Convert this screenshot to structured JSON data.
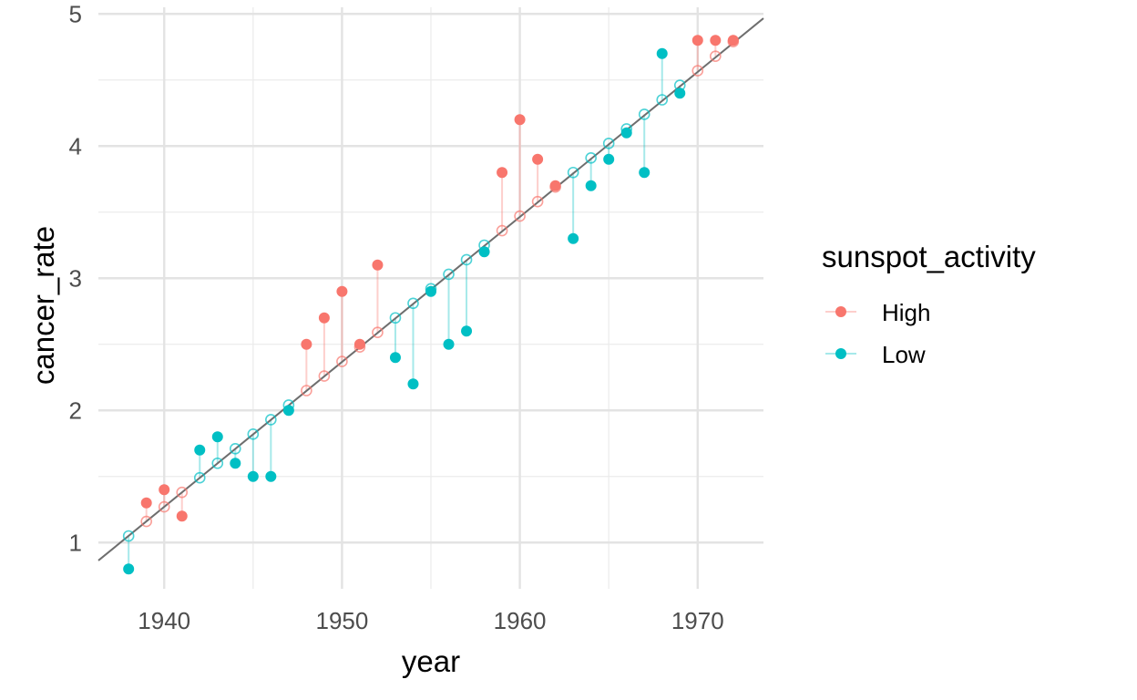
{
  "chart_data": {
    "type": "scatter",
    "xlabel": "year",
    "ylabel": "cancer_rate",
    "xlim": [
      1936.3,
      1973.7
    ],
    "ylim": [
      0.65,
      5.05
    ],
    "x_ticks": [
      1940,
      1950,
      1960,
      1970
    ],
    "y_ticks": [
      1,
      2,
      3,
      4,
      5
    ],
    "x_tick_labels": [
      "1940",
      "1950",
      "1960",
      "1970"
    ],
    "y_tick_labels": [
      "1",
      "2",
      "3",
      "4",
      "5"
    ],
    "grid": true,
    "legend": {
      "title": "sunspot_activity",
      "position": "right",
      "entries": [
        {
          "label": "High",
          "color": "#F8766D"
        },
        {
          "label": "Low",
          "color": "#00BFC4"
        }
      ]
    },
    "fit_line": {
      "intercept_year": 1940,
      "intercept_value": 1.27,
      "slope": 0.1097
    },
    "points": [
      {
        "year": 1938,
        "actual": 0.8,
        "fitted": 1.05,
        "group": "Low"
      },
      {
        "year": 1939,
        "actual": 1.3,
        "fitted": 1.16,
        "group": "High"
      },
      {
        "year": 1940,
        "actual": 1.4,
        "fitted": 1.27,
        "group": "High"
      },
      {
        "year": 1941,
        "actual": 1.2,
        "fitted": 1.38,
        "group": "High"
      },
      {
        "year": 1942,
        "actual": 1.7,
        "fitted": 1.49,
        "group": "Low"
      },
      {
        "year": 1943,
        "actual": 1.8,
        "fitted": 1.6,
        "group": "Low"
      },
      {
        "year": 1944,
        "actual": 1.6,
        "fitted": 1.71,
        "group": "Low"
      },
      {
        "year": 1945,
        "actual": 1.5,
        "fitted": 1.82,
        "group": "Low"
      },
      {
        "year": 1946,
        "actual": 1.5,
        "fitted": 1.93,
        "group": "Low"
      },
      {
        "year": 1947,
        "actual": 2.0,
        "fitted": 2.04,
        "group": "Low"
      },
      {
        "year": 1948,
        "actual": 2.5,
        "fitted": 2.15,
        "group": "High"
      },
      {
        "year": 1949,
        "actual": 2.7,
        "fitted": 2.26,
        "group": "High"
      },
      {
        "year": 1950,
        "actual": 2.9,
        "fitted": 2.37,
        "group": "High"
      },
      {
        "year": 1951,
        "actual": 2.5,
        "fitted": 2.48,
        "group": "High"
      },
      {
        "year": 1952,
        "actual": 3.1,
        "fitted": 2.59,
        "group": "High"
      },
      {
        "year": 1953,
        "actual": 2.4,
        "fitted": 2.7,
        "group": "Low"
      },
      {
        "year": 1954,
        "actual": 2.2,
        "fitted": 2.81,
        "group": "Low"
      },
      {
        "year": 1955,
        "actual": 2.9,
        "fitted": 2.92,
        "group": "Low"
      },
      {
        "year": 1956,
        "actual": 2.5,
        "fitted": 3.03,
        "group": "Low"
      },
      {
        "year": 1957,
        "actual": 2.6,
        "fitted": 3.14,
        "group": "Low"
      },
      {
        "year": 1958,
        "actual": 3.2,
        "fitted": 3.25,
        "group": "Low"
      },
      {
        "year": 1959,
        "actual": 3.8,
        "fitted": 3.36,
        "group": "High"
      },
      {
        "year": 1960,
        "actual": 4.2,
        "fitted": 3.47,
        "group": "High"
      },
      {
        "year": 1961,
        "actual": 3.9,
        "fitted": 3.58,
        "group": "High"
      },
      {
        "year": 1962,
        "actual": 3.7,
        "fitted": 3.69,
        "group": "High"
      },
      {
        "year": 1963,
        "actual": 3.3,
        "fitted": 3.8,
        "group": "Low"
      },
      {
        "year": 1964,
        "actual": 3.7,
        "fitted": 3.91,
        "group": "Low"
      },
      {
        "year": 1965,
        "actual": 3.9,
        "fitted": 4.02,
        "group": "Low"
      },
      {
        "year": 1966,
        "actual": 4.1,
        "fitted": 4.13,
        "group": "Low"
      },
      {
        "year": 1967,
        "actual": 3.8,
        "fitted": 4.24,
        "group": "Low"
      },
      {
        "year": 1968,
        "actual": 4.7,
        "fitted": 4.35,
        "group": "Low"
      },
      {
        "year": 1969,
        "actual": 4.4,
        "fitted": 4.46,
        "group": "Low"
      },
      {
        "year": 1970,
        "actual": 4.8,
        "fitted": 4.57,
        "group": "High"
      },
      {
        "year": 1971,
        "actual": 4.8,
        "fitted": 4.68,
        "group": "High"
      },
      {
        "year": 1972,
        "actual": 4.8,
        "fitted": 4.79,
        "group": "High"
      }
    ]
  }
}
